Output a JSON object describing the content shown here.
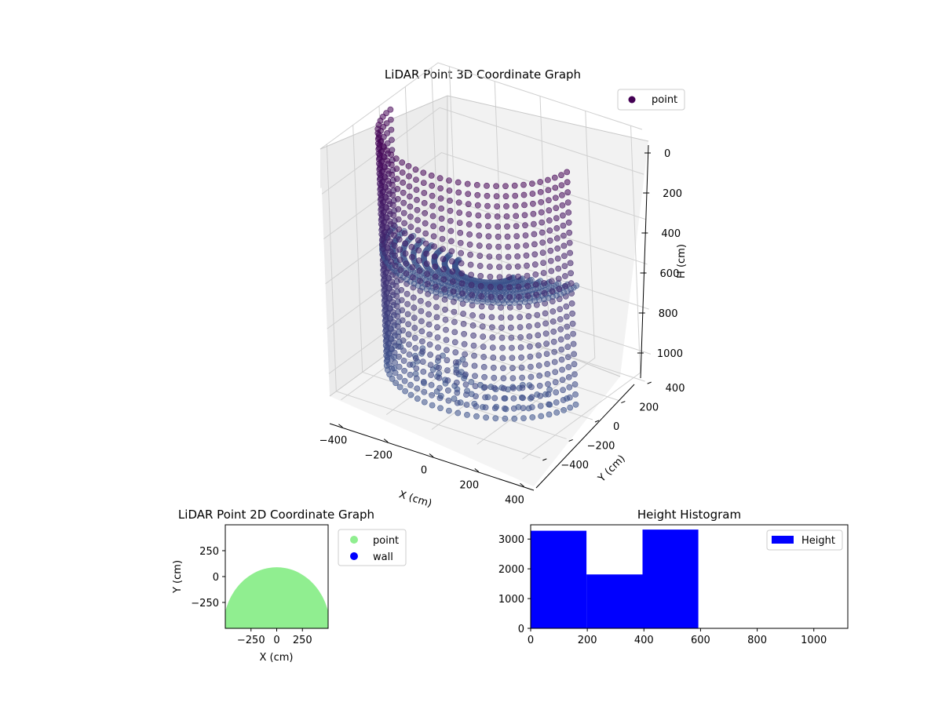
{
  "figure": {
    "colors": {
      "point_dark": "#440154",
      "point_mid": "#3b528b",
      "point_light": "#7aa6c9",
      "pane": "#f2f2f2",
      "grid": "#d0d0d0",
      "green": "#90ee90",
      "blue": "#0000ff"
    }
  },
  "chart_data": [
    {
      "type": "scatter",
      "title": "LiDAR Point 3D Coordinate Graph",
      "xlabel": "X (cm)",
      "ylabel": "Y (cm)",
      "zlabel": "H (cm)",
      "x_ticks": [
        "−400",
        "−200",
        "0",
        "200",
        "400"
      ],
      "y_ticks": [
        "−400",
        "−200",
        "0",
        "200",
        "400"
      ],
      "z_ticks": [
        "0",
        "200",
        "400",
        "600",
        "800",
        "1000"
      ],
      "xlim": [
        -450,
        450
      ],
      "ylim": [
        -450,
        450
      ],
      "zlim": [
        0,
        1100
      ],
      "z_inverted": true,
      "colormap": "viridis",
      "legend": [
        "point"
      ],
      "legend_position": "upper right",
      "grid": true
    },
    {
      "type": "scatter",
      "title": "LiDAR Point 2D Coordinate Graph",
      "xlabel": "X (cm)",
      "ylabel": "Y (cm)",
      "x_ticks": [
        "−250",
        "0",
        "250"
      ],
      "y_ticks": [
        "250",
        "0",
        "−250"
      ],
      "xlim": [
        -500,
        500
      ],
      "ylim": [
        -500,
        500
      ],
      "series": [
        {
          "name": "point",
          "color": "#90ee90"
        },
        {
          "name": "wall",
          "color": "#0000ff"
        }
      ],
      "legend_position": "outside right"
    },
    {
      "type": "bar",
      "title": "Height Histogram",
      "bins": [
        [
          0,
          197
        ],
        [
          197,
          395
        ],
        [
          395,
          592
        ]
      ],
      "values": [
        3280,
        1810,
        3320
      ],
      "series": [
        {
          "name": "Height",
          "color": "#0000ff"
        }
      ],
      "x_ticks": [
        "0",
        "200",
        "400",
        "600",
        "800",
        "1000"
      ],
      "y_ticks": [
        "0",
        "1000",
        "2000",
        "3000"
      ],
      "xlim": [
        0,
        1120
      ],
      "ylim": [
        0,
        3480
      ],
      "legend_position": "upper right"
    }
  ]
}
